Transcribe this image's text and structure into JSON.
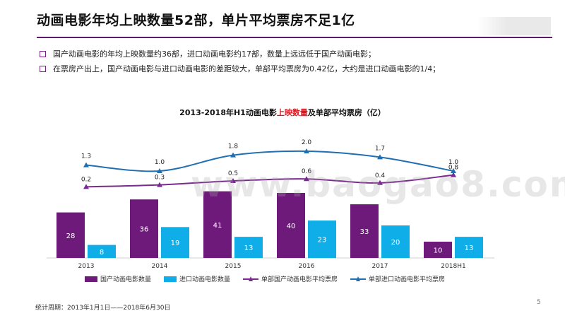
{
  "slide": {
    "title": "动画电影年均上映数量52部，单片平均票房不足1亿",
    "bullets": [
      "国产动画电影的年均上映数量约36部，进口动画电影约17部，数量上远远低于国产动画电影；",
      "在票房产出上，国产动画电影与进口动画电影的差距较大，单部平均票房为0.42亿，大约是进口动画电影的1/4；"
    ],
    "footnote": "统计周期：2013年1月1日——2018年6月30日",
    "page_number": "5",
    "watermark": "www.baogao8.com"
  },
  "colors": {
    "domestic": "#6e1a7a",
    "imported": "#10aee8",
    "domestic_line": "#7a2a8e",
    "imported_line": "#1f6fb2",
    "title_rule": "#5b1a6b",
    "highlight": "#e0141e"
  },
  "chart_data": {
    "type": "bar",
    "title_parts": [
      "2013-2018年H1动画电影",
      "上映数量",
      "及单部平均票房（亿）"
    ],
    "categories": [
      "2013",
      "2014",
      "2015",
      "2016",
      "2017",
      "2018H1"
    ],
    "series": [
      {
        "name": "国产动画电影数量",
        "kind": "bar",
        "values": [
          28,
          36,
          41,
          40,
          33,
          10
        ]
      },
      {
        "name": "进口动画电影数量",
        "kind": "bar",
        "values": [
          8,
          19,
          13,
          23,
          20,
          13
        ]
      },
      {
        "name": "单部国产动画电影平均票房",
        "kind": "line",
        "values": [
          0.2,
          0.3,
          0.5,
          0.6,
          0.4,
          0.8
        ]
      },
      {
        "name": "单部进口动画电影平均票房",
        "kind": "line",
        "values": [
          1.3,
          1.0,
          1.8,
          2.0,
          1.7,
          1.0
        ]
      }
    ],
    "legend_position": "bottom",
    "grid": false
  }
}
